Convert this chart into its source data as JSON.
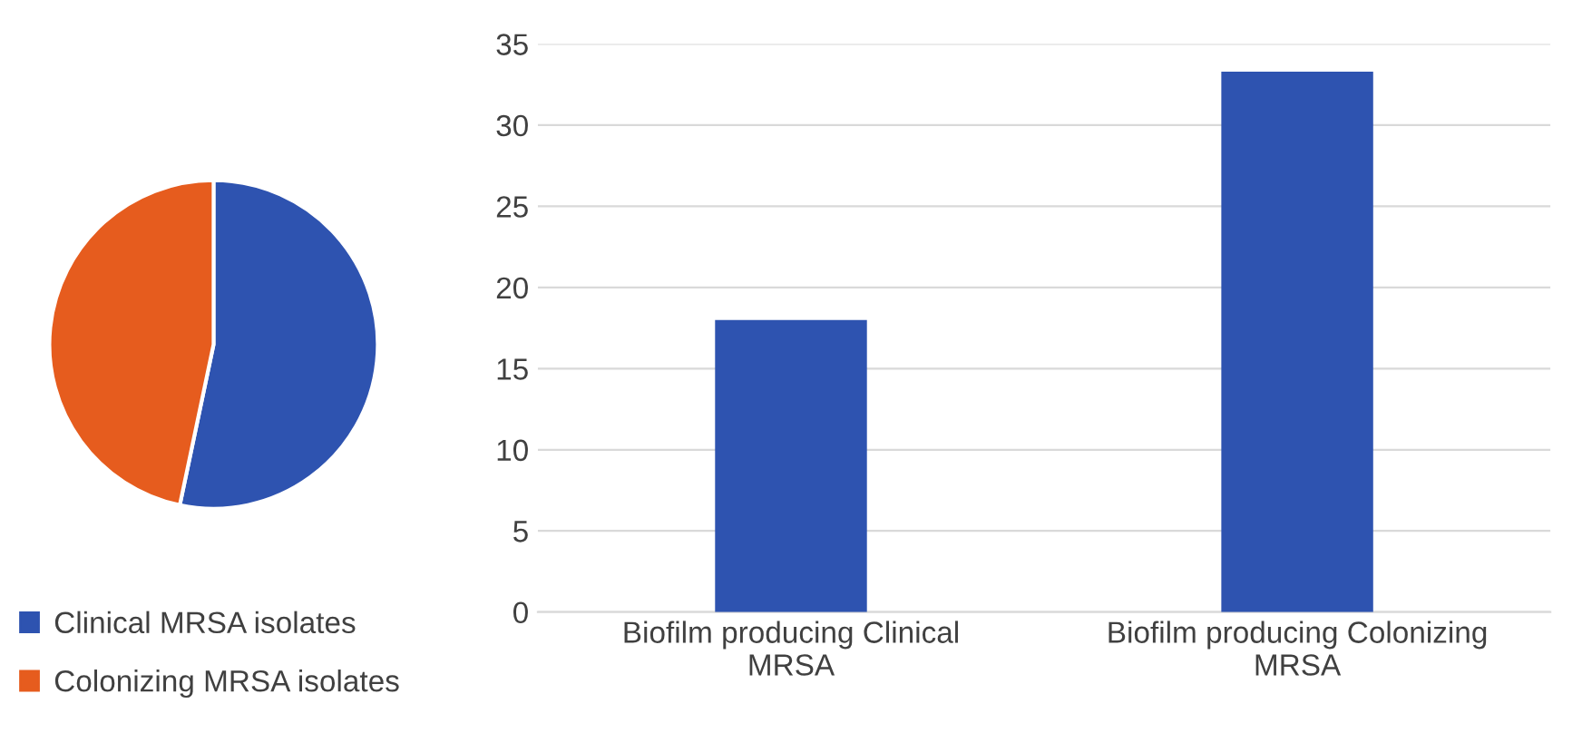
{
  "chart_data": [
    {
      "type": "pie",
      "categories": [
        "Clinical MRSA isolates",
        "Colonizing MRSA isolates"
      ],
      "values": [
        53.3,
        46.7
      ],
      "colors": [
        "#2e53b0",
        "#e65c1e"
      ],
      "legend": "bottom"
    },
    {
      "type": "bar",
      "categories": [
        "Biofilm producing Clinical MRSA",
        "Biofilm producing Colonizing MRSA"
      ],
      "values": [
        18,
        33.3
      ],
      "color": "#2e53b0",
      "ylim": [
        0,
        35
      ],
      "yticks": [
        0,
        5,
        10,
        15,
        20,
        25,
        30,
        35
      ],
      "grid": "y"
    }
  ]
}
